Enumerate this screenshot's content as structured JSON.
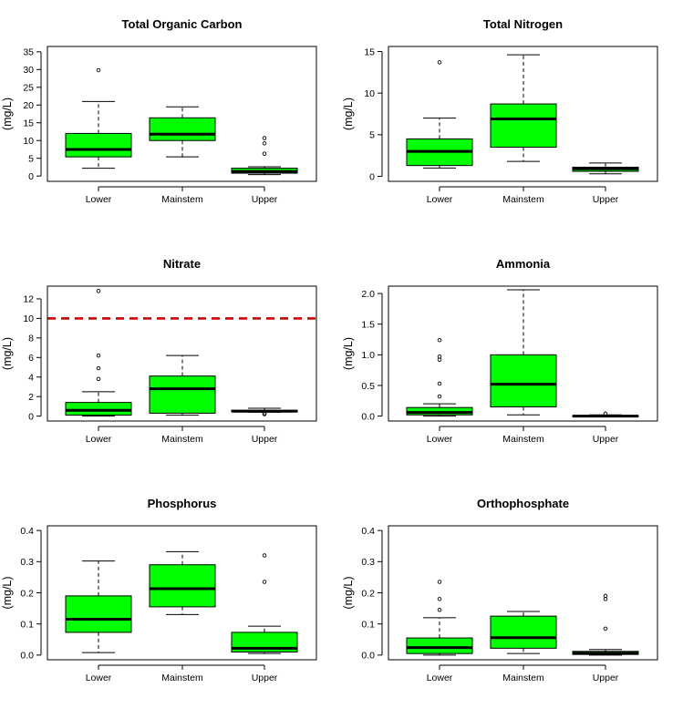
{
  "chart_data": [
    {
      "type": "box",
      "title": "Total Organic Carbon",
      "ylabel": "(mg/L)",
      "categories": [
        "Lower",
        "Mainstem",
        "Upper"
      ],
      "ylim": [
        -1.5,
        36.5
      ],
      "yticks": [
        0,
        5,
        10,
        15,
        20,
        25,
        30,
        35
      ],
      "boxes": [
        {
          "whisker_low": 2.2,
          "q1": 5.4,
          "median": 7.5,
          "q3": 12,
          "whisker_high": 21,
          "outliers": [
            29.8
          ]
        },
        {
          "whisker_low": 5.4,
          "q1": 10,
          "median": 11.8,
          "q3": 16.4,
          "whisker_high": 19.5,
          "outliers": []
        },
        {
          "whisker_low": 0.4,
          "q1": 0.8,
          "median": 1.3,
          "q3": 2.2,
          "whisker_high": 2.6,
          "outliers": [
            6.3,
            9.2,
            10.7
          ]
        }
      ]
    },
    {
      "type": "box",
      "title": "Total Nitrogen",
      "ylabel": "(mg/L)",
      "categories": [
        "Lower",
        "Mainstem",
        "Upper"
      ],
      "ylim": [
        -0.6,
        15.6
      ],
      "yticks": [
        0,
        5,
        10,
        15
      ],
      "boxes": [
        {
          "whisker_low": 1.0,
          "q1": 1.3,
          "median": 3.0,
          "q3": 4.5,
          "whisker_high": 7.0,
          "outliers": [
            13.7
          ]
        },
        {
          "whisker_low": 1.8,
          "q1": 3.5,
          "median": 6.9,
          "q3": 8.7,
          "whisker_high": 14.6,
          "outliers": []
        },
        {
          "whisker_low": 0.3,
          "q1": 0.6,
          "median": 0.9,
          "q3": 1.1,
          "whisker_high": 1.6,
          "outliers": []
        }
      ]
    },
    {
      "type": "box",
      "title": "Nitrate",
      "ylabel": "(mg/L)",
      "categories": [
        "Lower",
        "Mainstem",
        "Upper"
      ],
      "ylim": [
        -0.5,
        13.3
      ],
      "yticks": [
        0,
        2,
        4,
        6,
        8,
        10,
        12
      ],
      "reference_line": 10,
      "boxes": [
        {
          "whisker_low": 0.0,
          "q1": 0.1,
          "median": 0.6,
          "q3": 1.4,
          "whisker_high": 2.5,
          "outliers": [
            3.8,
            4.9,
            6.2,
            12.8
          ]
        },
        {
          "whisker_low": 0.1,
          "q1": 0.3,
          "median": 2.8,
          "q3": 4.1,
          "whisker_high": 6.2,
          "outliers": []
        },
        {
          "whisker_low": 0.4,
          "q1": 0.45,
          "median": 0.5,
          "q3": 0.6,
          "whisker_high": 0.8,
          "outliers": [
            0.2,
            0.3
          ]
        }
      ]
    },
    {
      "type": "box",
      "title": "Ammonia",
      "ylabel": "(mg/L)",
      "categories": [
        "Lower",
        "Mainstem",
        "Upper"
      ],
      "ylim": [
        -0.08,
        2.12
      ],
      "yticks": [
        0.0,
        0.5,
        1.0,
        1.5,
        2.0
      ],
      "ytick_labels": [
        "0.0",
        "0.5",
        "1.0",
        "1.5",
        "2.0"
      ],
      "boxes": [
        {
          "whisker_low": 0.0,
          "q1": 0.02,
          "median": 0.06,
          "q3": 0.14,
          "whisker_high": 0.2,
          "outliers": [
            0.32,
            0.53,
            0.92,
            0.97,
            1.24
          ]
        },
        {
          "whisker_low": 0.02,
          "q1": 0.15,
          "median": 0.52,
          "q3": 1.0,
          "whisker_high": 2.06,
          "outliers": []
        },
        {
          "whisker_low": 0.0,
          "q1": 0.0,
          "median": 0.0,
          "q3": 0.01,
          "whisker_high": 0.02,
          "outliers": [
            0.04
          ]
        }
      ]
    },
    {
      "type": "box",
      "title": "Phosphorus",
      "ylabel": "(mg/L)",
      "categories": [
        "Lower",
        "Mainstem",
        "Upper"
      ],
      "ylim": [
        -0.015,
        0.415
      ],
      "yticks": [
        0.0,
        0.1,
        0.2,
        0.3,
        0.4
      ],
      "ytick_labels": [
        "0.0",
        "0.1",
        "0.2",
        "0.3",
        "0.4"
      ],
      "boxes": [
        {
          "whisker_low": 0.008,
          "q1": 0.073,
          "median": 0.115,
          "q3": 0.19,
          "whisker_high": 0.302,
          "outliers": []
        },
        {
          "whisker_low": 0.13,
          "q1": 0.155,
          "median": 0.213,
          "q3": 0.29,
          "whisker_high": 0.332,
          "outliers": []
        },
        {
          "whisker_low": 0.005,
          "q1": 0.01,
          "median": 0.022,
          "q3": 0.073,
          "whisker_high": 0.093,
          "outliers": [
            0.235,
            0.32
          ]
        }
      ]
    },
    {
      "type": "box",
      "title": "Orthophosphate",
      "ylabel": "(mg/L)",
      "categories": [
        "Lower",
        "Mainstem",
        "Upper"
      ],
      "ylim": [
        -0.015,
        0.415
      ],
      "yticks": [
        0.0,
        0.1,
        0.2,
        0.3,
        0.4
      ],
      "ytick_labels": [
        "0.0",
        "0.1",
        "0.2",
        "0.3",
        "0.4"
      ],
      "boxes": [
        {
          "whisker_low": 0.0,
          "q1": 0.005,
          "median": 0.024,
          "q3": 0.055,
          "whisker_high": 0.12,
          "outliers": [
            0.145,
            0.18,
            0.235
          ]
        },
        {
          "whisker_low": 0.005,
          "q1": 0.022,
          "median": 0.056,
          "q3": 0.125,
          "whisker_high": 0.14,
          "outliers": []
        },
        {
          "whisker_low": 0.0,
          "q1": 0.002,
          "median": 0.006,
          "q3": 0.012,
          "whisker_high": 0.018,
          "outliers": [
            0.085,
            0.18,
            0.19
          ]
        }
      ]
    }
  ],
  "colors": {
    "box_fill": "#00ff00",
    "reference_line": "#cc0000",
    "ink": "#000000"
  }
}
